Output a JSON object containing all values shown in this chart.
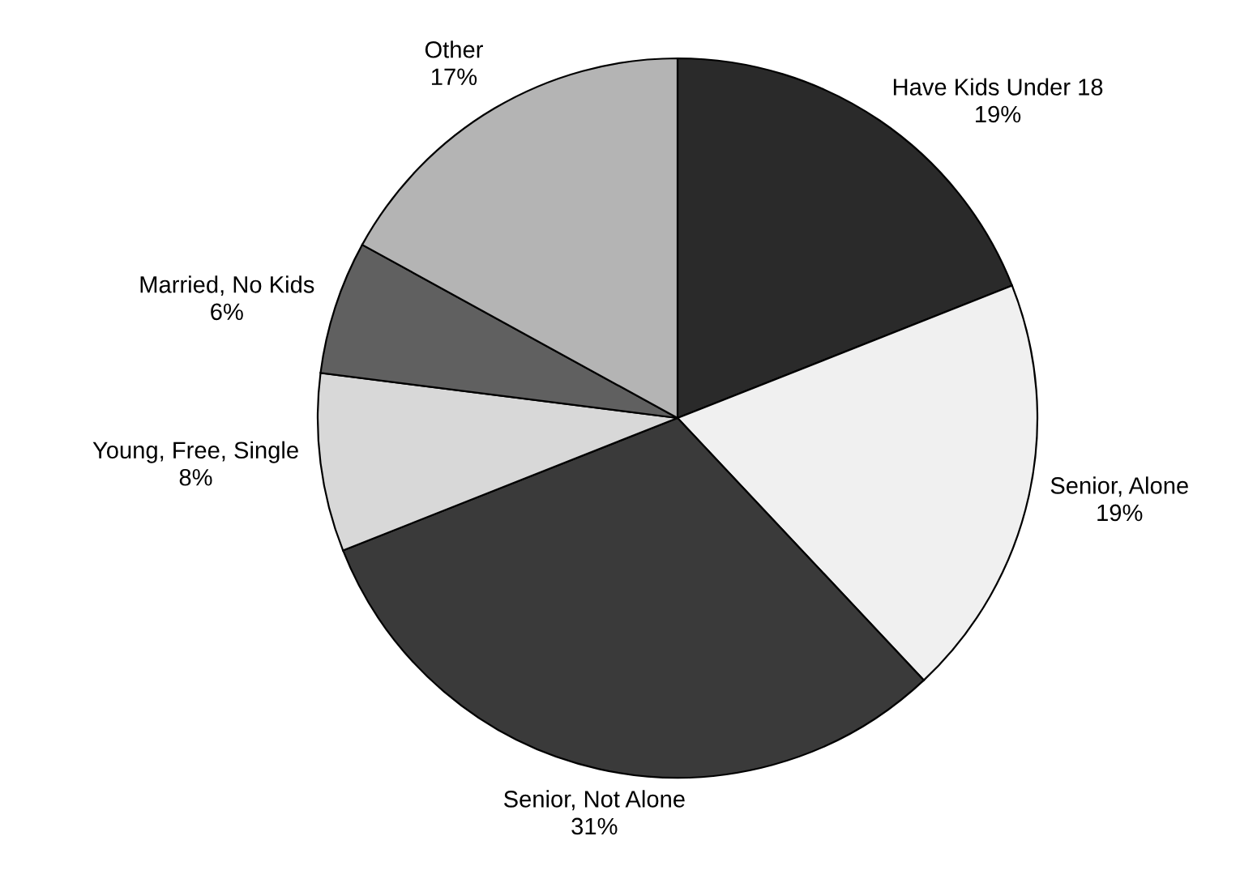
{
  "chart_data": {
    "type": "pie",
    "categories": [
      "Have Kids Under 18",
      "Senior, Alone",
      "Senior, Not Alone",
      "Young, Free, Single",
      "Married, No Kids",
      "Other"
    ],
    "values": [
      19,
      19,
      31,
      8,
      6,
      17
    ],
    "value_labels": [
      "19%",
      "19%",
      "31%",
      "8%",
      "6%",
      "17%"
    ],
    "colors": [
      "#2a2a2a",
      "#f0f0f0",
      "#3a3a3a",
      "#d8d8d8",
      "#606060",
      "#b4b4b4"
    ],
    "legend": false
  }
}
